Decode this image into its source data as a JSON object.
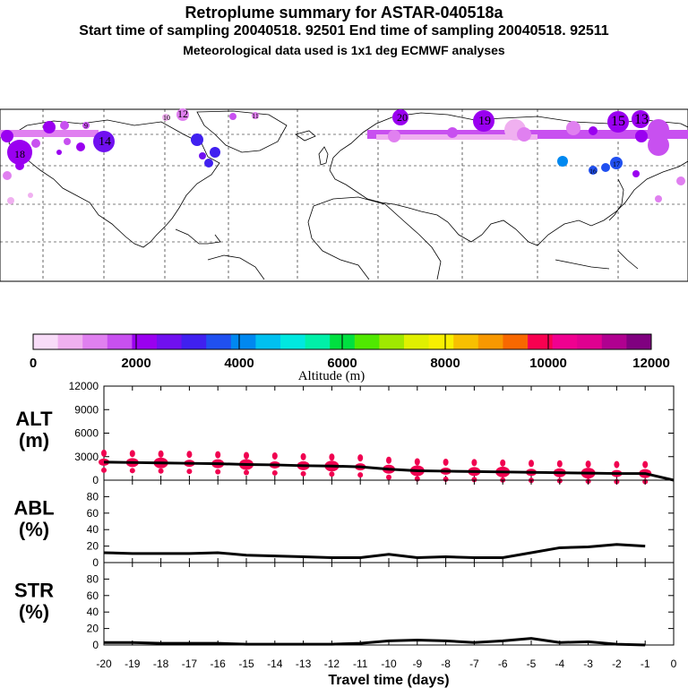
{
  "title": "Retroplume summary for ASTAR-040518a",
  "subtitle1": "Start time of sampling 20040518. 92501     End time of sampling 20040518. 92511",
  "subtitle2": "Meteorological data used is 1x1 deg ECMWF analyses",
  "colorbar": {
    "label": "Altitude (m)",
    "tick_labels": [
      "0",
      "2000",
      "4000",
      "6000",
      "8000",
      "10000",
      "12000"
    ],
    "colors": [
      "#f8dcf8",
      "#f0b0f0",
      "#e080f0",
      "#c850f0",
      "#9a00f0",
      "#7010f0",
      "#4020f0",
      "#2050f0",
      "#0088f0",
      "#00c0f0",
      "#00e8e0",
      "#00f0a8",
      "#00e040",
      "#50e800",
      "#a0e800",
      "#e0f000",
      "#f8f000",
      "#f8c000",
      "#f89800",
      "#f86800",
      "#f80050",
      "#f00090",
      "#e00090",
      "#b00090",
      "#800080"
    ]
  },
  "map": {
    "labels": [
      {
        "text": "19",
        "color": "#9a00f0"
      },
      {
        "text": "20",
        "color": "#9a00f0"
      },
      {
        "text": "14",
        "color": "#9a00f0"
      },
      {
        "text": "15",
        "color": "#c850f0"
      },
      {
        "text": "13",
        "color": "#c850f0"
      },
      {
        "text": "12",
        "color": "#e080f0"
      },
      {
        "text": "10",
        "color": "#f0b0f0"
      },
      {
        "text": "11",
        "color": "#e080f0"
      },
      {
        "text": "9",
        "color": "#c850f0"
      },
      {
        "text": "18",
        "color": "#9a00f0"
      },
      {
        "text": "16",
        "color": "#2050f0"
      },
      {
        "text": "17",
        "color": "#2050f0"
      }
    ]
  },
  "chart_data": [
    {
      "type": "line",
      "panel_label": "ALT\n(m)",
      "label_line1": "ALT",
      "label_line2": "(m)",
      "x": [
        -20,
        -19,
        -18,
        -17,
        -16,
        -15,
        -14,
        -13,
        -12,
        -11,
        -10,
        -9,
        -8,
        -7,
        -6,
        -5,
        -4,
        -3,
        -2,
        -1,
        0
      ],
      "values": [
        2300,
        2250,
        2200,
        2150,
        2100,
        2000,
        1950,
        1850,
        1800,
        1700,
        1400,
        1200,
        1150,
        1100,
        1050,
        1000,
        950,
        900,
        850,
        850,
        0
      ],
      "xlim": [
        -20,
        0
      ],
      "ylim": [
        0,
        12000
      ],
      "yticks": [
        "12000",
        "9000",
        "6000",
        "3000",
        "0"
      ],
      "marker_color": "#f00050"
    },
    {
      "type": "line",
      "label_line1": "ABL",
      "label_line2": "(%)",
      "x": [
        -20,
        -19,
        -18,
        -17,
        -16,
        -15,
        -14,
        -13,
        -12,
        -11,
        -10,
        -9,
        -8,
        -7,
        -6,
        -5,
        -4,
        -3,
        -2,
        -1
      ],
      "values": [
        12,
        11,
        11,
        11,
        12,
        9,
        8,
        7,
        6,
        6,
        10,
        6,
        7,
        6,
        6,
        12,
        18,
        19,
        22,
        20
      ],
      "xlim": [
        -20,
        0
      ],
      "ylim": [
        0,
        100
      ],
      "yticks": [
        "80",
        "60",
        "40",
        "20",
        "0"
      ]
    },
    {
      "type": "line",
      "label_line1": "STR",
      "label_line2": "(%)",
      "x": [
        -20,
        -19,
        -18,
        -17,
        -16,
        -15,
        -14,
        -13,
        -12,
        -11,
        -10,
        -9,
        -8,
        -7,
        -6,
        -5,
        -4,
        -3,
        -2,
        -1
      ],
      "values": [
        3,
        3,
        2,
        2,
        2,
        1,
        1,
        1,
        1,
        2,
        5,
        6,
        5,
        3,
        5,
        8,
        3,
        4,
        1,
        0
      ],
      "xlim": [
        -20,
        0
      ],
      "ylim": [
        0,
        100
      ],
      "yticks": [
        "80",
        "60",
        "40",
        "20",
        "0"
      ]
    }
  ],
  "xaxis": {
    "tick_labels": [
      "-20",
      "-19",
      "-18",
      "-17",
      "-16",
      "-15",
      "-14",
      "-13",
      "-12",
      "-11",
      "-10",
      "-9",
      "-8",
      "-7",
      "-6",
      "-5",
      "-4",
      "-3",
      "-2",
      "-1",
      "0"
    ],
    "label": "Travel time (days)"
  }
}
